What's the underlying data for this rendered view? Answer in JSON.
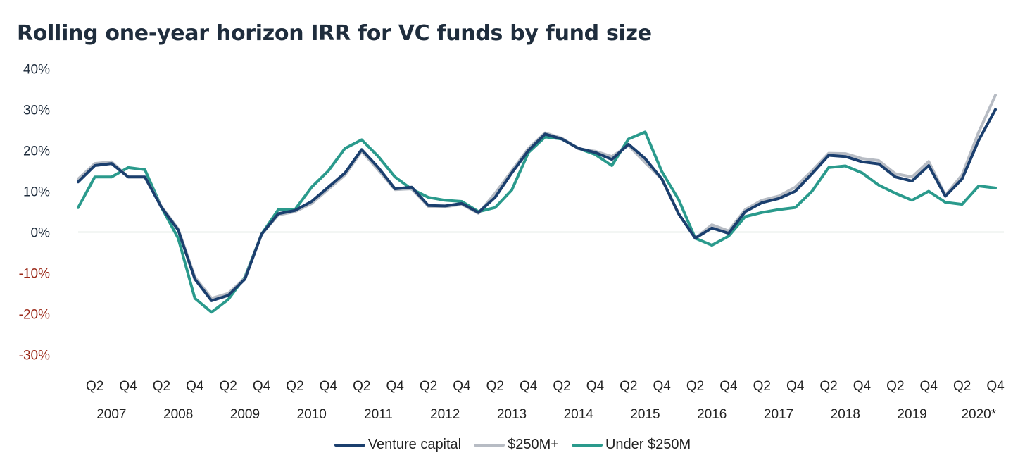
{
  "chart_data": {
    "type": "line",
    "title": "Rolling one-year horizon IRR for VC funds by fund size",
    "y_ticks": [
      "40%",
      "30%",
      "20%",
      "10%",
      "0%",
      "-10%",
      "-20%",
      "-30%"
    ],
    "y_tick_values": [
      40,
      30,
      20,
      10,
      0,
      -10,
      -20,
      -30
    ],
    "ylim": [
      -30,
      40
    ],
    "quarter_labels": [
      "Q2",
      "Q4"
    ],
    "years": [
      "2007",
      "2008",
      "2009",
      "2010",
      "2011",
      "2012",
      "2013",
      "2014",
      "2015",
      "2016",
      "2017",
      "2018",
      "2019",
      "2020*"
    ],
    "negative_tick_color": "#9b2a1a",
    "grid": false,
    "zero_line": true,
    "legend_position": "bottom",
    "x": [
      "2007 Q1",
      "2007 Q2",
      "2007 Q3",
      "2007 Q4",
      "2008 Q1",
      "2008 Q2",
      "2008 Q3",
      "2008 Q4",
      "2009 Q1",
      "2009 Q2",
      "2009 Q3",
      "2009 Q4",
      "2010 Q1",
      "2010 Q2",
      "2010 Q3",
      "2010 Q4",
      "2011 Q1",
      "2011 Q2",
      "2011 Q3",
      "2011 Q4",
      "2012 Q1",
      "2012 Q2",
      "2012 Q3",
      "2012 Q4",
      "2013 Q1",
      "2013 Q2",
      "2013 Q3",
      "2013 Q4",
      "2014 Q1",
      "2014 Q2",
      "2014 Q3",
      "2014 Q4",
      "2015 Q1",
      "2015 Q2",
      "2015 Q3",
      "2015 Q4",
      "2016 Q1",
      "2016 Q2",
      "2016 Q3",
      "2016 Q4",
      "2017 Q1",
      "2017 Q2",
      "2017 Q3",
      "2017 Q4",
      "2018 Q1",
      "2018 Q2",
      "2018 Q3",
      "2018 Q4",
      "2019 Q1",
      "2019 Q2",
      "2019 Q3",
      "2019 Q4",
      "2020 Q1",
      "2020 Q2",
      "2020 Q3",
      "2020 Q4"
    ],
    "series": [
      {
        "name": "Venture capital",
        "color": "#1b3f6e",
        "values": [
          12.3,
          16.3,
          16.8,
          13.5,
          13.5,
          6.0,
          0.5,
          -11.5,
          -16.8,
          -15.5,
          -11.5,
          -0.5,
          4.5,
          5.3,
          7.5,
          11.0,
          14.5,
          20.2,
          15.8,
          10.6,
          11.0,
          6.5,
          6.4,
          7.0,
          4.8,
          8.5,
          14.5,
          20.0,
          24.0,
          22.8,
          20.5,
          19.5,
          17.8,
          21.5,
          18.0,
          13.0,
          4.5,
          -1.5,
          1.0,
          -0.3,
          5.0,
          7.2,
          8.2,
          10.0,
          14.3,
          18.8,
          18.5,
          17.2,
          16.7,
          13.5,
          12.5,
          16.3,
          8.8,
          13.0,
          22.5,
          30.0
        ]
      },
      {
        "name": "$250M+",
        "color": "#b7bcc4",
        "values": [
          13.0,
          16.8,
          17.2,
          13.5,
          13.5,
          6.2,
          0.8,
          -11.0,
          -16.2,
          -15.0,
          -11.3,
          -0.5,
          4.2,
          5.0,
          7.0,
          10.5,
          14.0,
          19.8,
          15.2,
          10.4,
          10.6,
          6.3,
          6.2,
          6.8,
          4.6,
          9.5,
          15.0,
          20.5,
          24.3,
          23.0,
          20.4,
          19.8,
          18.5,
          21.2,
          17.0,
          13.0,
          4.5,
          -1.5,
          1.8,
          0.3,
          5.5,
          7.8,
          8.8,
          11.0,
          15.0,
          19.3,
          19.2,
          18.0,
          17.5,
          14.3,
          13.5,
          17.3,
          9.0,
          14.0,
          24.5,
          33.5
        ]
      },
      {
        "name": "Under $250M",
        "color": "#2a9a8c",
        "values": [
          6.0,
          13.5,
          13.5,
          15.8,
          15.3,
          6.0,
          -1.5,
          -16.2,
          -19.6,
          -16.5,
          -11.0,
          -0.5,
          5.5,
          5.5,
          11.0,
          15.0,
          20.5,
          22.6,
          18.5,
          13.5,
          10.5,
          8.5,
          7.8,
          7.5,
          5.0,
          6.0,
          10.3,
          19.5,
          23.3,
          22.8,
          20.5,
          19.0,
          16.3,
          22.8,
          24.5,
          14.8,
          8.0,
          -1.5,
          -3.2,
          -1.0,
          3.8,
          4.8,
          5.5,
          6.0,
          10.0,
          15.8,
          16.2,
          14.5,
          11.5,
          9.5,
          7.8,
          10.0,
          7.3,
          6.8,
          11.3,
          10.8
        ]
      }
    ]
  }
}
